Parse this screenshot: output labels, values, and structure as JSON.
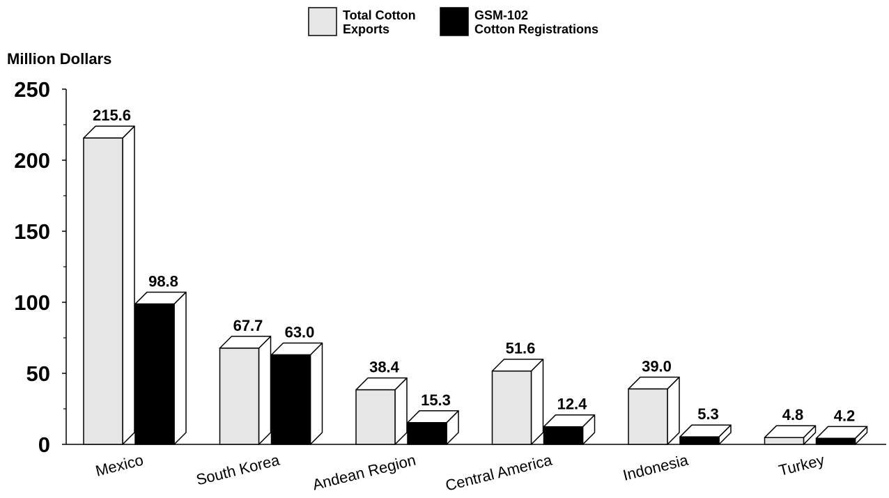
{
  "chart_data": {
    "type": "bar",
    "title": "",
    "ylabel": "Million Dollars",
    "xlabel": "",
    "ylim": [
      0,
      250
    ],
    "yticks": [
      "0",
      "50",
      "100",
      "150",
      "200",
      "250"
    ],
    "categories": [
      "Mexico",
      "South Korea",
      "Andean Region",
      "Central America",
      "Indonesia",
      "Turkey"
    ],
    "series": [
      {
        "name": "Total Cotton Exports",
        "legend_lines": [
          "Total Cotton",
          "Exports"
        ],
        "color": "#e6e6e6",
        "values": [
          215.6,
          67.7,
          38.4,
          51.6,
          39.0,
          4.8
        ],
        "value_labels": [
          "215.6",
          "67.7",
          "38.4",
          "51.6",
          "39.0",
          "4.8"
        ]
      },
      {
        "name": "GSM-102 Cotton Registrations",
        "legend_lines": [
          "GSM-102",
          "Cotton Registrations"
        ],
        "color": "#000000",
        "values": [
          98.8,
          63.0,
          15.3,
          12.4,
          5.3,
          4.2
        ],
        "value_labels": [
          "98.8",
          "63.0",
          "15.3",
          "12.4",
          "5.3",
          "4.2"
        ]
      }
    ],
    "legend_position": "top-center",
    "grid": false
  }
}
